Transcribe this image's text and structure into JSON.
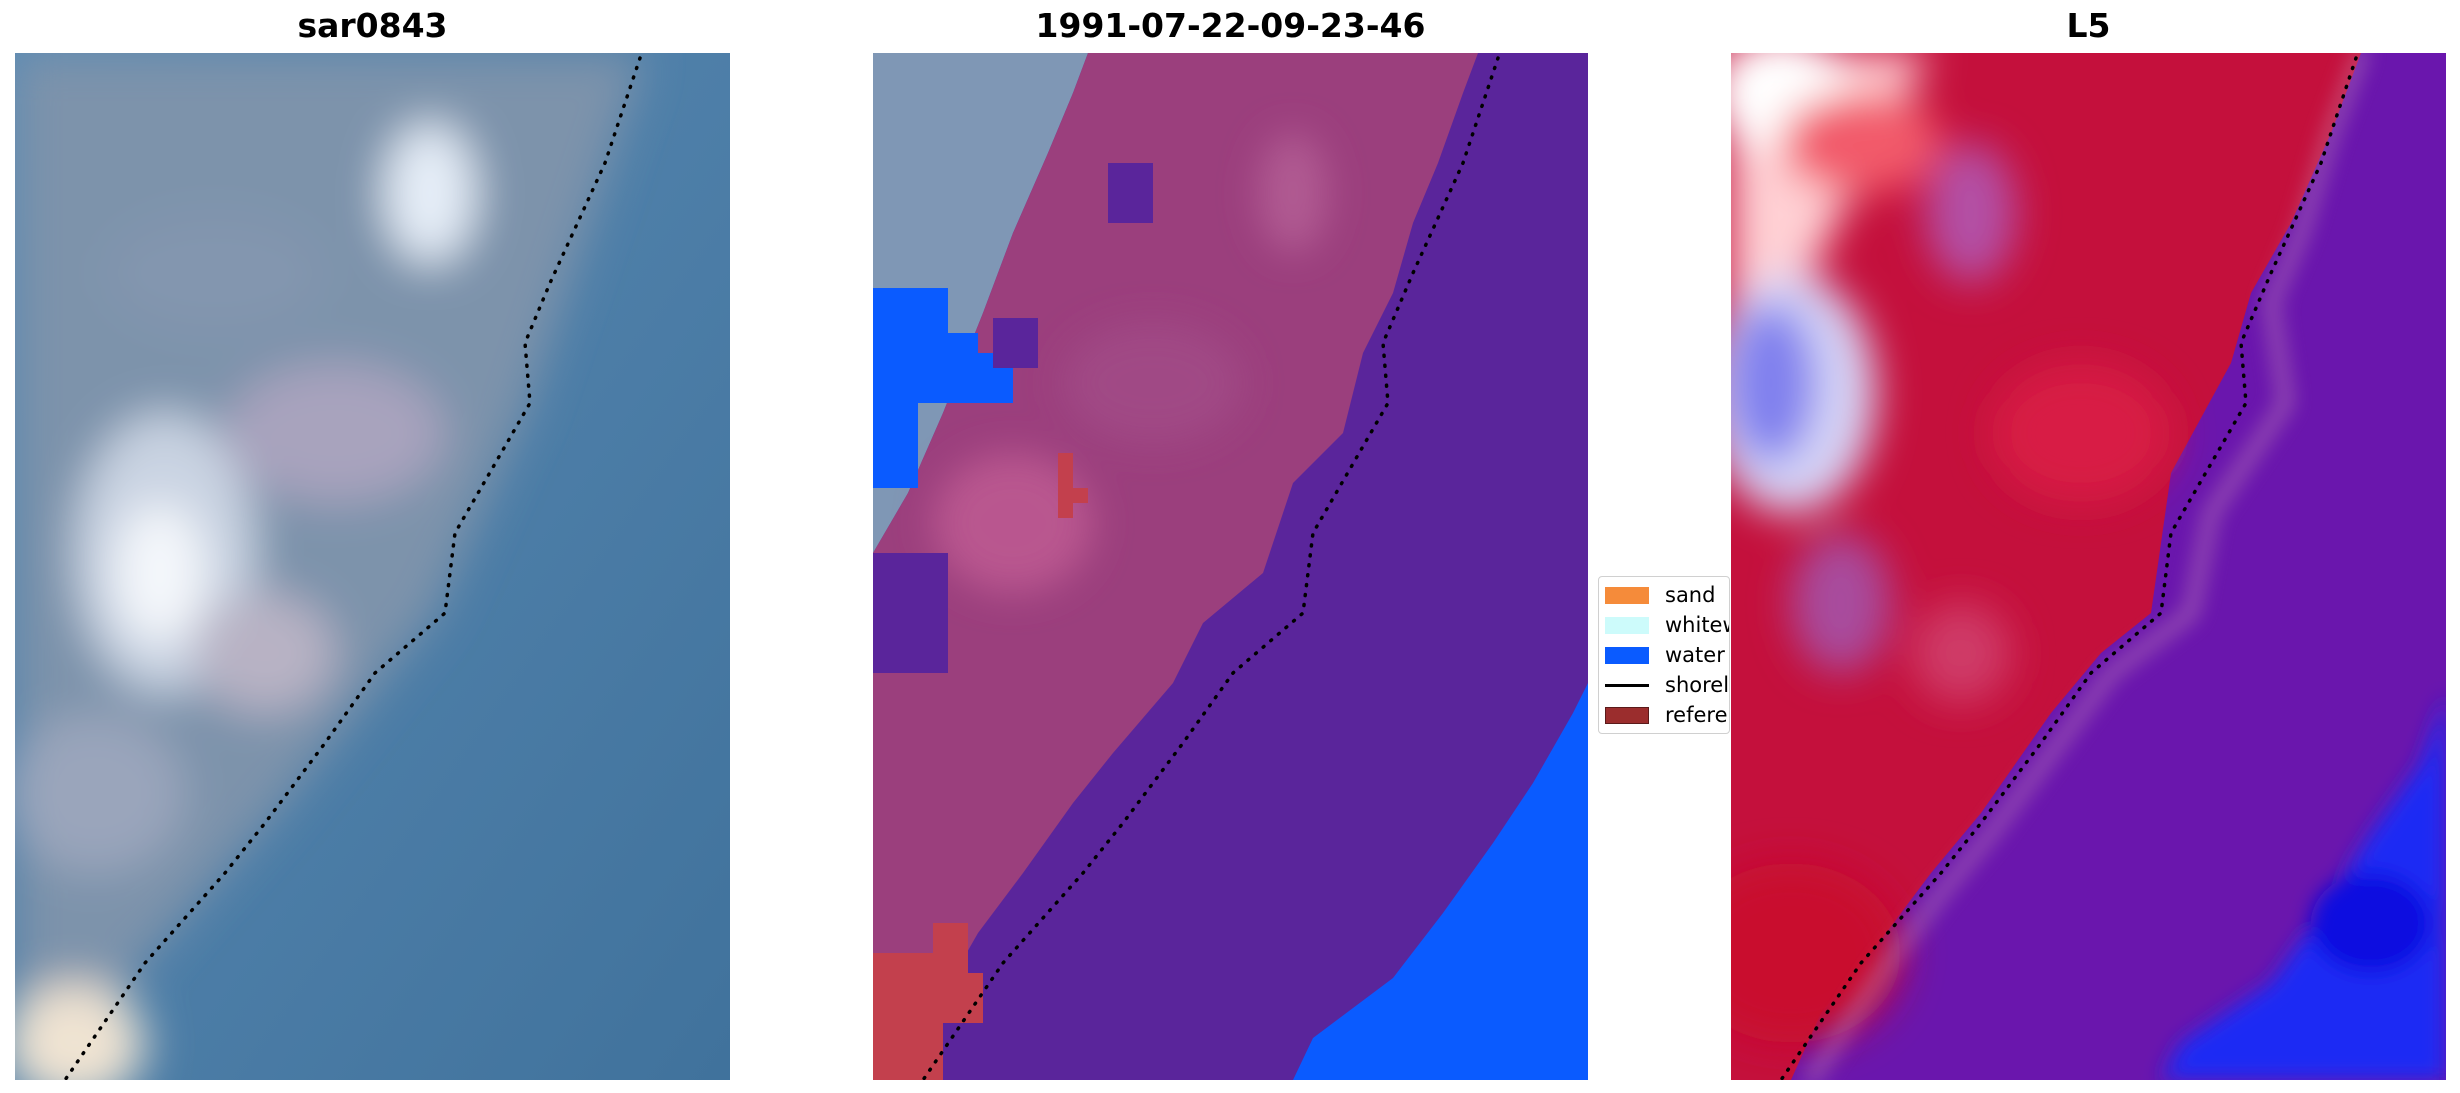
{
  "panels": {
    "left": {
      "title": "sar0843"
    },
    "middle": {
      "title": "1991-07-22-09-23-46"
    },
    "right": {
      "title": "L5"
    }
  },
  "legend": {
    "items": [
      {
        "label": "sand",
        "color": "#f58b3a"
      },
      {
        "label": "whitewater",
        "color": "#cdfbfb"
      },
      {
        "label": "water",
        "color": "#0a5bff"
      },
      {
        "label": "shoreline",
        "color": "#000000"
      },
      {
        "label": "reference",
        "color": "#9b2d2d"
      }
    ]
  },
  "colors": {
    "ocean": "#4c7ea8",
    "land_class_tint": "#9b3f7d",
    "water_class_tint": "#5a259b",
    "sand_index": "#c4103c",
    "water_index": "#6a16ad"
  }
}
